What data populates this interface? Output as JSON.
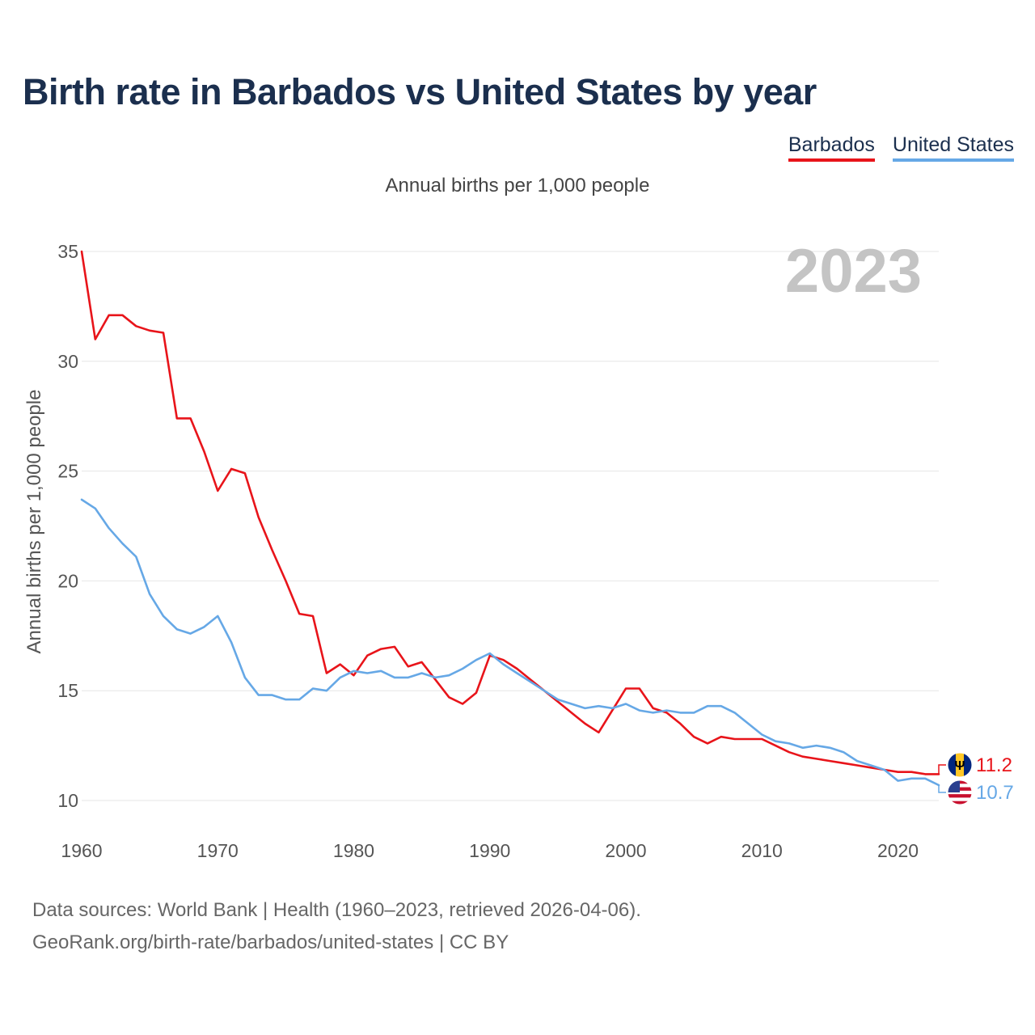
{
  "title": "Birth rate in Barbados vs United States by year",
  "subtitle": "Annual births per 1,000 people",
  "legend": {
    "barbados": "Barbados",
    "united_states": "United States"
  },
  "footer": {
    "line1": "Data sources: World Bank | Health (1960–2023, retrieved 2026-04-06).",
    "line2": "GeoRank.org/birth-rate/barbados/united-states | CC BY"
  },
  "chart_data": {
    "type": "line",
    "title": "Birth rate in Barbados vs United States by year",
    "subtitle": "Annual births per 1,000 people",
    "xlabel": "",
    "ylabel": "Annual births per 1,000 people",
    "ylim": [
      10,
      35
    ],
    "xlim": [
      1960,
      2023
    ],
    "yticks": [
      10,
      15,
      20,
      25,
      30,
      35
    ],
    "xticks": [
      1960,
      1970,
      1980,
      1990,
      2000,
      2010,
      2020
    ],
    "grid": true,
    "legend_position": "top-right",
    "year_watermark": "2023",
    "x": [
      1960,
      1961,
      1962,
      1963,
      1964,
      1965,
      1966,
      1967,
      1968,
      1969,
      1970,
      1971,
      1972,
      1973,
      1974,
      1975,
      1976,
      1977,
      1978,
      1979,
      1980,
      1981,
      1982,
      1983,
      1984,
      1985,
      1986,
      1987,
      1988,
      1989,
      1990,
      1991,
      1992,
      1993,
      1994,
      1995,
      1996,
      1997,
      1998,
      1999,
      2000,
      2001,
      2002,
      2003,
      2004,
      2005,
      2006,
      2007,
      2008,
      2009,
      2010,
      2011,
      2012,
      2013,
      2014,
      2015,
      2016,
      2017,
      2018,
      2019,
      2020,
      2021,
      2022,
      2023
    ],
    "series": [
      {
        "name": "Barbados",
        "color": "#e8141a",
        "end_label": "11.2",
        "values": [
          35.0,
          31.0,
          32.1,
          32.1,
          31.6,
          31.4,
          31.3,
          27.4,
          27.4,
          25.9,
          24.1,
          25.1,
          24.9,
          22.9,
          21.4,
          20.0,
          18.5,
          18.4,
          15.8,
          16.2,
          15.7,
          16.6,
          16.9,
          17.0,
          16.1,
          16.3,
          15.5,
          14.7,
          14.4,
          14.9,
          16.6,
          16.4,
          16.0,
          15.5,
          15.0,
          14.5,
          14.0,
          13.5,
          13.1,
          14.1,
          15.1,
          15.1,
          14.2,
          14.0,
          13.5,
          12.9,
          12.6,
          12.9,
          12.8,
          12.8,
          12.8,
          12.5,
          12.2,
          12.0,
          11.9,
          11.8,
          11.7,
          11.6,
          11.5,
          11.4,
          11.3,
          11.3,
          11.2,
          11.2
        ]
      },
      {
        "name": "United States",
        "color": "#66a8e6",
        "end_label": "10.7",
        "values": [
          23.7,
          23.3,
          22.4,
          21.7,
          21.1,
          19.4,
          18.4,
          17.8,
          17.6,
          17.9,
          18.4,
          17.2,
          15.6,
          14.8,
          14.8,
          14.6,
          14.6,
          15.1,
          15.0,
          15.6,
          15.9,
          15.8,
          15.9,
          15.6,
          15.6,
          15.8,
          15.6,
          15.7,
          16.0,
          16.4,
          16.7,
          16.2,
          15.8,
          15.4,
          15.0,
          14.6,
          14.4,
          14.2,
          14.3,
          14.2,
          14.4,
          14.1,
          14.0,
          14.1,
          14.0,
          14.0,
          14.3,
          14.3,
          14.0,
          13.5,
          13.0,
          12.7,
          12.6,
          12.4,
          12.5,
          12.4,
          12.2,
          11.8,
          11.6,
          11.4,
          10.9,
          11.0,
          11.0,
          10.7
        ]
      }
    ]
  }
}
